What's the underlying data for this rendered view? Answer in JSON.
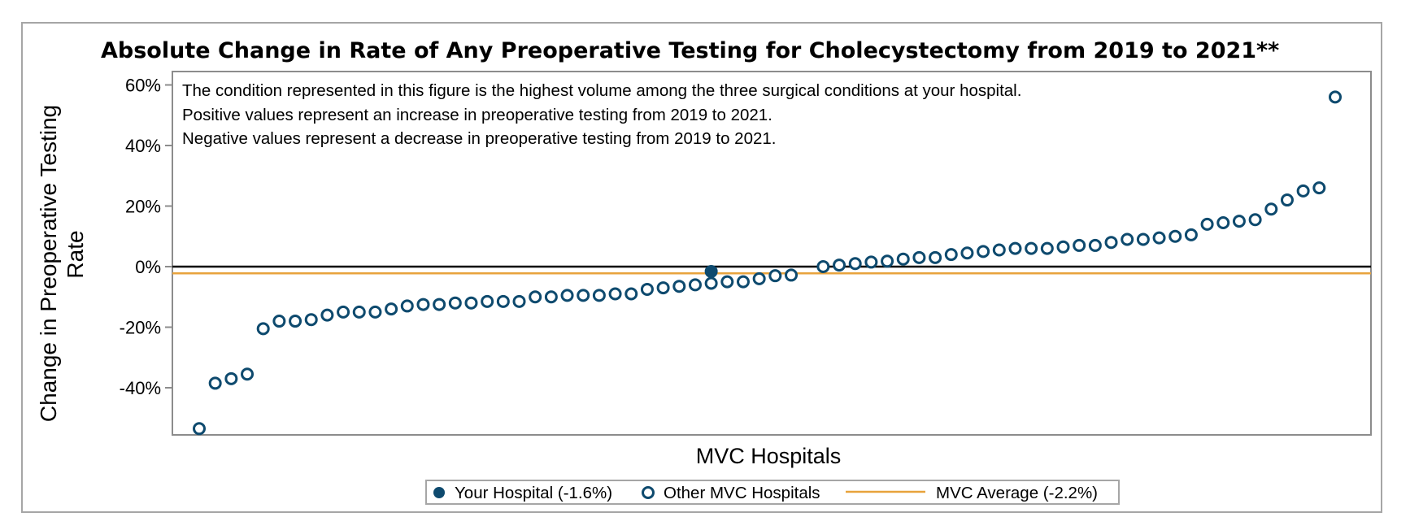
{
  "chart_data": {
    "type": "scatter",
    "title": "Absolute Change in Rate of Any Preoperative Testing for Cholecystectomy from 2019 to 2021**",
    "xlabel": "MVC Hospitals",
    "ylabel_lines": [
      "Change in Preoperative Testing",
      "Rate"
    ],
    "ylim": [
      -57,
      63
    ],
    "yticks": [
      60,
      40,
      20,
      0,
      -20,
      -40
    ],
    "ytick_labels": [
      "60%",
      "40%",
      "20%",
      "0%",
      "-20%",
      "-40%"
    ],
    "annotations": [
      "The condition represented in this figure is the highest volume among the three surgical conditions at your hospital.",
      "Positive values represent an increase in preoperative testing from 2019 to 2021.",
      "Negative values represent a decrease in preoperative testing from 2019 to 2021."
    ],
    "zero_line": 0,
    "average_line": {
      "name": "MVC Average (-2.2%)",
      "value": -2.2,
      "color": "#e8a33c"
    },
    "series": [
      {
        "name": "Your Hospital (-1.6%)",
        "marker": "filled-circle",
        "color": "#0e4a6e",
        "points": [
          [
            33,
            -1.6
          ]
        ]
      },
      {
        "name": "Other MVC Hospitals",
        "marker": "open-circle",
        "color": "#0e4a6e",
        "points": [
          [
            1,
            -53.5
          ],
          [
            2,
            -38.5
          ],
          [
            3,
            -37.0
          ],
          [
            4,
            -35.5
          ],
          [
            5,
            -20.5
          ],
          [
            6,
            -18.0
          ],
          [
            7,
            -18.0
          ],
          [
            8,
            -17.5
          ],
          [
            9,
            -16.0
          ],
          [
            10,
            -15.0
          ],
          [
            11,
            -15.0
          ],
          [
            12,
            -15.0
          ],
          [
            13,
            -14.0
          ],
          [
            14,
            -13.0
          ],
          [
            15,
            -12.5
          ],
          [
            16,
            -12.5
          ],
          [
            17,
            -12.0
          ],
          [
            18,
            -12.0
          ],
          [
            19,
            -11.5
          ],
          [
            20,
            -11.5
          ],
          [
            21,
            -11.5
          ],
          [
            22,
            -10.0
          ],
          [
            23,
            -10.0
          ],
          [
            24,
            -9.5
          ],
          [
            25,
            -9.5
          ],
          [
            26,
            -9.5
          ],
          [
            27,
            -9.0
          ],
          [
            28,
            -9.0
          ],
          [
            29,
            -7.5
          ],
          [
            30,
            -7.0
          ],
          [
            31,
            -6.5
          ],
          [
            32,
            -6.0
          ],
          [
            33,
            -5.5
          ],
          [
            34,
            -5.0
          ],
          [
            35,
            -5.0
          ],
          [
            36,
            -4.0
          ],
          [
            37,
            -3.0
          ],
          [
            38,
            -2.8
          ],
          [
            40,
            0.0
          ],
          [
            41,
            0.5
          ],
          [
            42,
            1.0
          ],
          [
            43,
            1.5
          ],
          [
            44,
            1.8
          ],
          [
            45,
            2.5
          ],
          [
            46,
            3.0
          ],
          [
            47,
            3.0
          ],
          [
            48,
            4.0
          ],
          [
            49,
            4.5
          ],
          [
            50,
            5.0
          ],
          [
            51,
            5.5
          ],
          [
            52,
            6.0
          ],
          [
            53,
            6.0
          ],
          [
            54,
            6.0
          ],
          [
            55,
            6.5
          ],
          [
            56,
            7.0
          ],
          [
            57,
            7.0
          ],
          [
            58,
            8.0
          ],
          [
            59,
            9.0
          ],
          [
            60,
            9.0
          ],
          [
            61,
            9.5
          ],
          [
            62,
            10.0
          ],
          [
            63,
            10.5
          ],
          [
            64,
            14.0
          ],
          [
            65,
            14.5
          ],
          [
            66,
            15.0
          ],
          [
            67,
            15.5
          ],
          [
            68,
            19.0
          ],
          [
            69,
            22.0
          ],
          [
            70,
            25.0
          ],
          [
            71,
            26.0
          ],
          [
            72,
            56.0
          ]
        ]
      }
    ],
    "legend": {
      "placement": "bottom-center",
      "items": [
        {
          "label": "Your Hospital (-1.6%)",
          "marker": "filled-circle"
        },
        {
          "label": "Other MVC Hospitals",
          "marker": "open-circle"
        },
        {
          "label": "MVC Average (-2.2%)",
          "marker": "line"
        }
      ]
    },
    "colors": {
      "point": "#0e4a6e",
      "average": "#e8a33c",
      "zero_line": "#000000",
      "axis": "#8c8c8c"
    }
  }
}
